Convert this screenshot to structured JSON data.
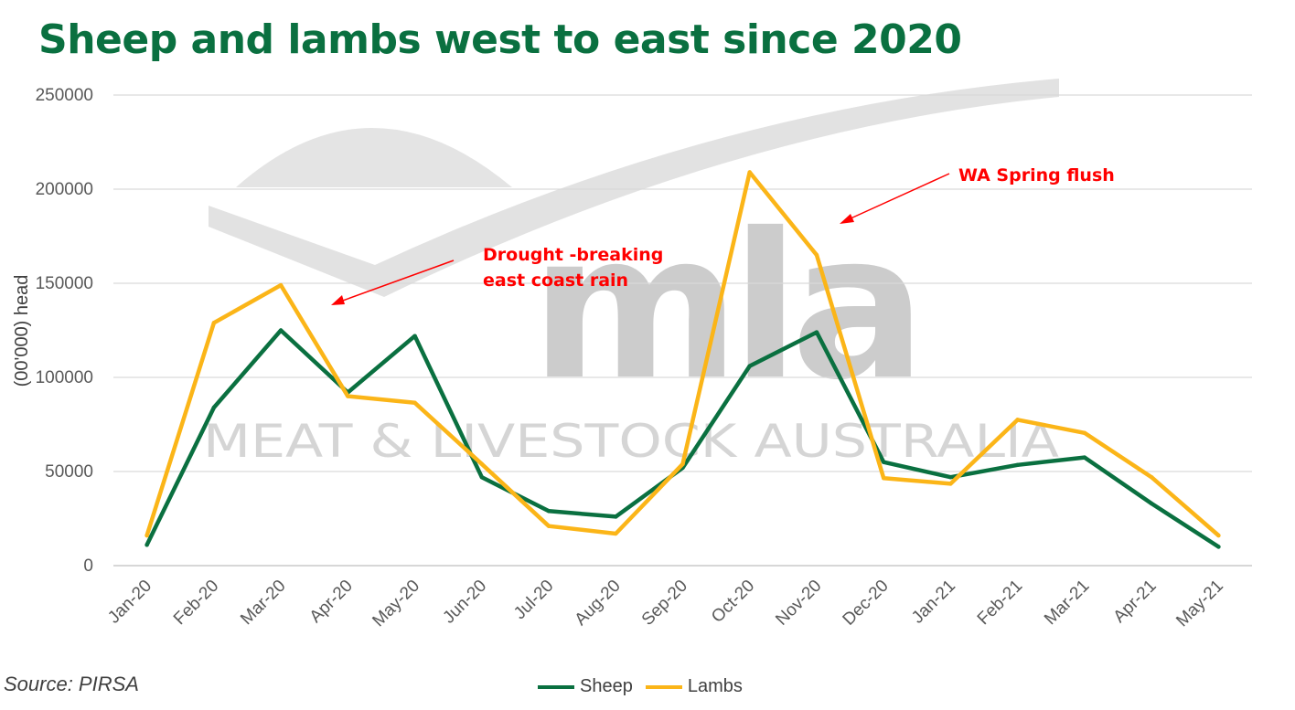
{
  "chart_data": {
    "type": "line",
    "title": "Sheep and lambs west to east since 2020",
    "ylabel": "(00'000) head",
    "xlabel": "",
    "ylim": [
      0,
      250000
    ],
    "yticks": [
      "0",
      "50000",
      "100000",
      "150000",
      "200000",
      "250000"
    ],
    "grid": true,
    "legend_position": "bottom",
    "categories": [
      "Jan-20",
      "Feb-20",
      "Mar-20",
      "Apr-20",
      "May-20",
      "Jun-20",
      "Jul-20",
      "Aug-20",
      "Sep-20",
      "Oct-20",
      "Nov-20",
      "Dec-20",
      "Jan-21",
      "Feb-21",
      "Mar-21",
      "Apr-21",
      "May-21"
    ],
    "series": [
      {
        "name": "Sheep",
        "color": "#0a7040",
        "values": [
          11000,
          84000,
          125000,
          92000,
          122000,
          47000,
          29000,
          26000,
          52000,
          106000,
          124000,
          55000,
          47000,
          53500,
          57500,
          33000,
          10000
        ]
      },
      {
        "name": "Lambs",
        "color": "#fbb518",
        "values": [
          16000,
          129000,
          149000,
          90000,
          86500,
          54000,
          21000,
          17000,
          54000,
          209000,
          165000,
          46500,
          43500,
          77500,
          70500,
          47000,
          16000
        ]
      }
    ],
    "annotations": [
      {
        "lines": [
          "Drought -breaking",
          "east coast rain"
        ],
        "points_to": "Apr-20"
      },
      {
        "lines": [
          "WA Spring flush"
        ],
        "points_to": "Nov-20"
      }
    ]
  },
  "watermark": {
    "logo": "mla",
    "text": "MEAT & LIVESTOCK AUSTRALIA"
  },
  "source": "Source: PIRSA"
}
